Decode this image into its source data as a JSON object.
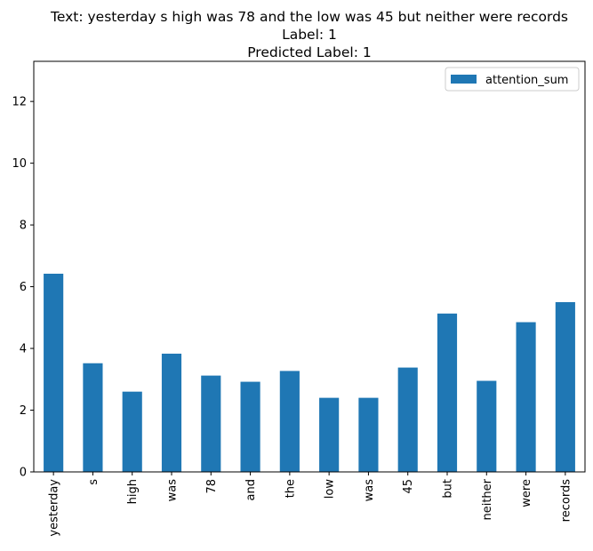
{
  "chart_data": {
    "type": "bar",
    "title_lines": [
      "Text: yesterday s high was 78 and the low was 45 but neither were records",
      "Label: 1",
      "Predicted Label: 1"
    ],
    "categories": [
      "yesterday",
      "s",
      "high",
      "was",
      "78",
      "and",
      "the",
      "low",
      "was",
      "45",
      "but",
      "neither",
      "were",
      "records"
    ],
    "series": [
      {
        "name": "attention_sum",
        "color": "#1f77b4",
        "values": [
          6.42,
          3.52,
          2.6,
          3.83,
          3.12,
          2.92,
          3.27,
          2.4,
          2.4,
          3.38,
          5.13,
          2.95,
          4.85,
          5.5
        ]
      }
    ],
    "xlabel": "",
    "ylabel": "",
    "ylim": [
      0,
      13.3
    ],
    "yticks": [
      0,
      2,
      4,
      6,
      8,
      10,
      12
    ],
    "grid": false,
    "legend_position": "top-right"
  }
}
